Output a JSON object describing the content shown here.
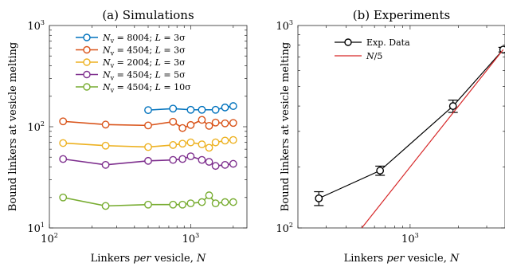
{
  "chart_data": [
    {
      "type": "line",
      "title": "(a)  Simulations",
      "xlabel": "Linkers per vesicle, N",
      "ylabel": "Bound linkers at vesicle melting",
      "xscale": "log",
      "yscale": "log",
      "xlim": [
        100,
        2500
      ],
      "ylim": [
        10,
        1000
      ],
      "xticks": [
        {
          "base": "10",
          "exp": "2"
        },
        {
          "base": "10",
          "exp": "3"
        }
      ],
      "yticks": [
        {
          "base": "10",
          "exp": "1"
        },
        {
          "base": "10",
          "exp": "2"
        },
        {
          "base": "10",
          "exp": "3"
        }
      ],
      "legend_placement": "top-right",
      "series": [
        {
          "name": "Nv = 8004; L = 3σ",
          "color": "#0072BD",
          "x": [
            500,
            750,
            1000,
            1200,
            1500,
            1750,
            2000
          ],
          "y": [
            146,
            151,
            147,
            147,
            147,
            155,
            160
          ]
        },
        {
          "name": "Nv = 4504; L = 3σ",
          "color": "#D95319",
          "x": [
            125,
            250,
            500,
            750,
            875,
            1000,
            1200,
            1350,
            1500,
            1750,
            2000
          ],
          "y": [
            113,
            105,
            103,
            112,
            97,
            104,
            117,
            102,
            110,
            108,
            109
          ]
        },
        {
          "name": "Nv = 2004; L = 3σ",
          "color": "#EDB120",
          "x": [
            125,
            250,
            500,
            750,
            875,
            1000,
            1200,
            1350,
            1500,
            1750,
            2000
          ],
          "y": [
            69,
            65,
            63,
            66,
            68,
            70,
            67,
            62,
            70,
            73,
            74
          ]
        },
        {
          "name": "Nv = 4504; L = 5σ",
          "color": "#7E2F8E",
          "x": [
            125,
            250,
            500,
            750,
            875,
            1000,
            1200,
            1350,
            1500,
            1750,
            2000
          ],
          "y": [
            48,
            42,
            46,
            47,
            48,
            51,
            47,
            45,
            41,
            42,
            43
          ]
        },
        {
          "name": "Nv = 4504; L = 10σ",
          "color": "#77AC30",
          "x": [
            125,
            250,
            500,
            750,
            875,
            1000,
            1200,
            1350,
            1500,
            1750,
            2000
          ],
          "y": [
            20,
            16.5,
            17,
            17,
            17,
            17.5,
            18,
            21,
            17.5,
            18,
            18
          ]
        }
      ]
    },
    {
      "type": "line",
      "title": "(b)  Experiments",
      "xlabel": "Linkers per vesicle, N",
      "ylabel": "Bound linkers at vesicle melting",
      "xscale": "log",
      "yscale": "log",
      "xlim": [
        200,
        3900
      ],
      "ylim": [
        100,
        1000
      ],
      "xticks": [
        {
          "base": "10",
          "exp": "3"
        }
      ],
      "yticks": [
        {
          "base": "10",
          "exp": "2"
        },
        {
          "base": "10",
          "exp": "3"
        }
      ],
      "legend_placement": "top-left",
      "series": [
        {
          "name": "Exp. Data",
          "color": "#000000",
          "marker": "circle",
          "x": [
            270,
            650,
            1850,
            3800
          ],
          "y": [
            140,
            192,
            400,
            760
          ],
          "err": [
            11,
            10,
            28,
            20
          ]
        },
        {
          "name": "N/5",
          "color": "#d62728",
          "marker": "none",
          "x": [
            500,
            3800
          ],
          "y": [
            100,
            760
          ]
        }
      ]
    }
  ]
}
